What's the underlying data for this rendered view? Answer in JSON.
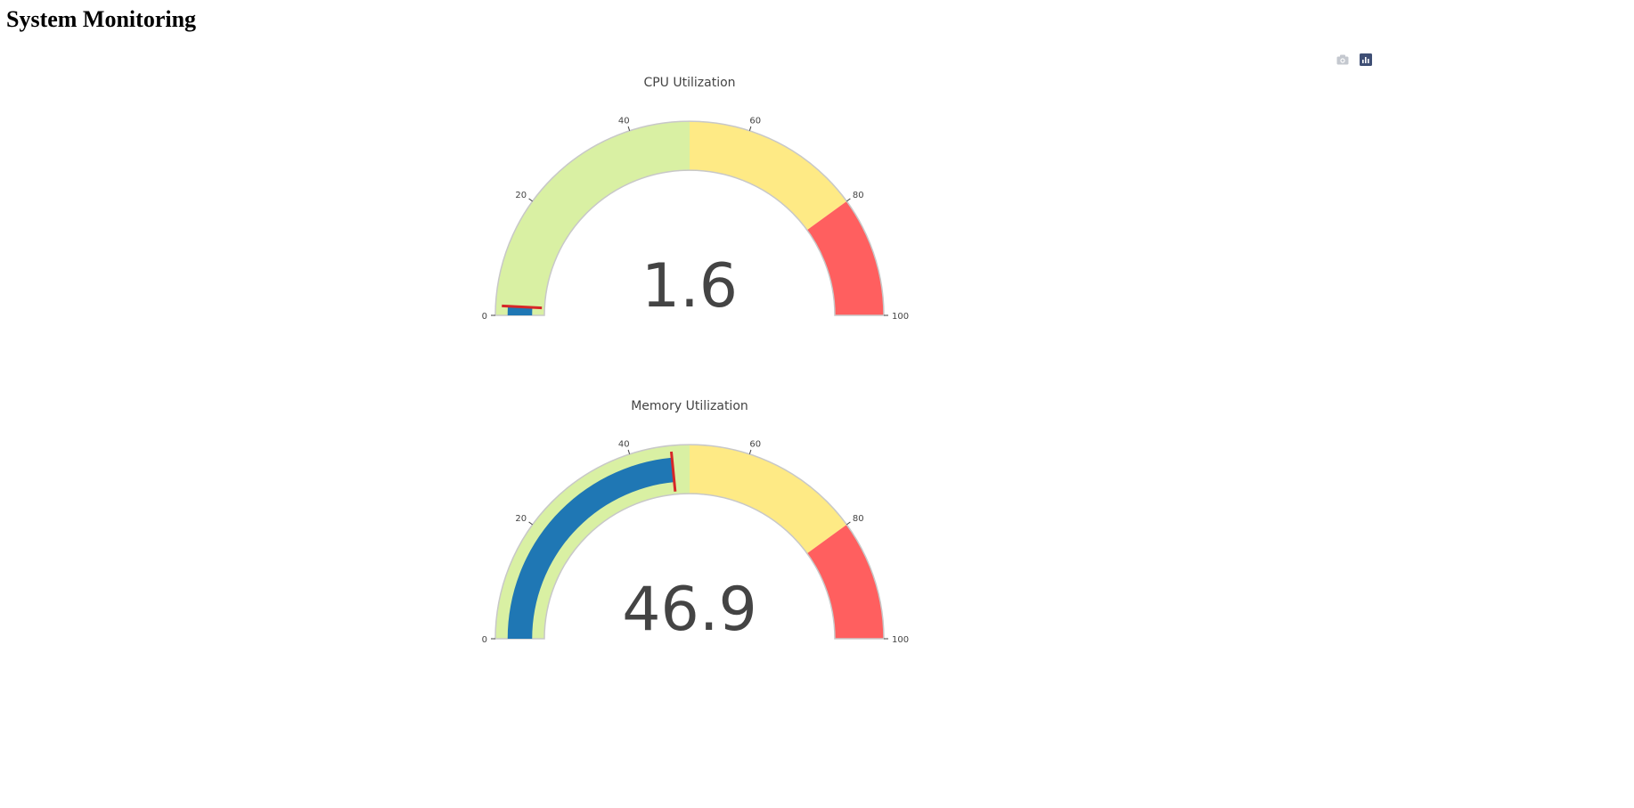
{
  "page": {
    "title": "System Monitoring"
  },
  "modebar": {
    "camera_icon": "camera-icon",
    "logo_icon": "plotly-logo-icon"
  },
  "colors": {
    "bar": "#1f77b4",
    "threshold": "#d62728",
    "step_low": "#d9f0a3",
    "step_mid": "#feea85",
    "step_high": "#ff5f5f",
    "border": "#c8c8c8",
    "text": "#444444"
  },
  "chart_data": [
    {
      "type": "gauge",
      "title": "CPU Utilization",
      "value": 1.6,
      "value_label": "1.6",
      "range": [
        0,
        100
      ],
      "ticks": [
        0,
        20,
        40,
        60,
        80,
        100
      ],
      "tick_labels": [
        "0",
        "20",
        "40",
        "60",
        "80",
        "100"
      ],
      "steps": [
        {
          "range": [
            0,
            50
          ],
          "color": "#d9f0a3"
        },
        {
          "range": [
            50,
            80
          ],
          "color": "#feea85"
        },
        {
          "range": [
            80,
            100
          ],
          "color": "#ff5f5f"
        }
      ],
      "threshold": 1.6
    },
    {
      "type": "gauge",
      "title": "Memory Utilization",
      "value": 46.9,
      "value_label": "46.9",
      "range": [
        0,
        100
      ],
      "ticks": [
        0,
        20,
        40,
        60,
        80,
        100
      ],
      "tick_labels": [
        "0",
        "20",
        "40",
        "60",
        "80",
        "100"
      ],
      "steps": [
        {
          "range": [
            0,
            50
          ],
          "color": "#d9f0a3"
        },
        {
          "range": [
            50,
            80
          ],
          "color": "#feea85"
        },
        {
          "range": [
            80,
            100
          ],
          "color": "#ff5f5f"
        }
      ],
      "threshold": 46.9
    }
  ]
}
